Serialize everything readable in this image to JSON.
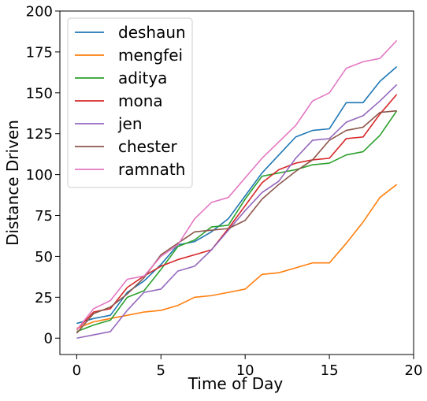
{
  "chart_data": {
    "type": "line",
    "title": "",
    "xlabel": "Time of Day",
    "ylabel": "Distance Driven",
    "xlim": [
      -1,
      20
    ],
    "ylim": [
      -10,
      200
    ],
    "x_ticks": [
      0,
      5,
      10,
      15,
      20
    ],
    "y_ticks": [
      0,
      25,
      50,
      75,
      100,
      125,
      150,
      175,
      200
    ],
    "x_tick_labels": [
      "0",
      "5",
      "10",
      "15",
      "20"
    ],
    "y_tick_labels": [
      "0",
      "25",
      "50",
      "75",
      "100",
      "125",
      "150",
      "175",
      "200"
    ],
    "grid": false,
    "legend_position": "upper-left",
    "x": [
      0,
      1,
      2,
      3,
      4,
      5,
      6,
      7,
      8,
      9,
      10,
      11,
      12,
      13,
      14,
      15,
      16,
      17,
      18,
      19
    ],
    "series": [
      {
        "name": "deshaun",
        "color": "#1f77b4",
        "values": [
          9,
          12,
          14,
          28,
          35,
          45,
          57,
          59,
          65,
          73,
          87,
          101,
          112,
          123,
          127,
          128,
          144,
          144,
          157,
          166
        ]
      },
      {
        "name": "mengfei",
        "color": "#ff7f0e",
        "values": [
          6,
          10,
          12,
          14,
          16,
          17,
          20,
          25,
          26,
          28,
          30,
          39,
          40,
          43,
          46,
          46,
          58,
          71,
          86,
          94
        ]
      },
      {
        "name": "aditya",
        "color": "#2ca02c",
        "values": [
          4,
          8,
          11,
          25,
          29,
          42,
          56,
          60,
          68,
          69,
          85,
          99,
          101,
          103,
          106,
          107,
          112,
          114,
          124,
          139
        ]
      },
      {
        "name": "mona",
        "color": "#d62728",
        "values": [
          5,
          16,
          18,
          31,
          38,
          44,
          48,
          51,
          54,
          67,
          81,
          95,
          103,
          107,
          109,
          110,
          122,
          123,
          137,
          149
        ]
      },
      {
        "name": "jen",
        "color": "#9467bd",
        "values": [
          0,
          2,
          4,
          17,
          28,
          30,
          41,
          44,
          54,
          66,
          78,
          89,
          96,
          110,
          121,
          122,
          132,
          136,
          145,
          155
        ]
      },
      {
        "name": "chester",
        "color": "#8c564b",
        "values": [
          3,
          15,
          19,
          27,
          37,
          51,
          58,
          65,
          66,
          67,
          72,
          85,
          94,
          102,
          109,
          121,
          127,
          129,
          138,
          139
        ]
      },
      {
        "name": "ramnath",
        "color": "#e377c2",
        "values": [
          5,
          18,
          23,
          36,
          38,
          50,
          57,
          73,
          83,
          86,
          98,
          110,
          120,
          130,
          145,
          150,
          165,
          169,
          171,
          182
        ]
      }
    ]
  }
}
